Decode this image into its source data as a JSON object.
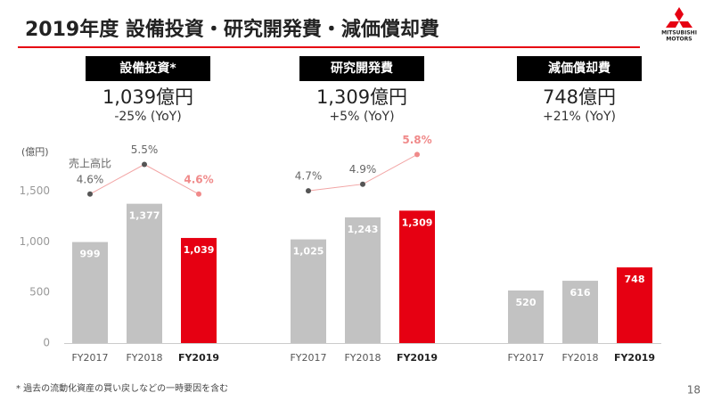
{
  "header": {
    "title": "2019年度 設備投資・研究開発費・減価償却費",
    "logo_text": [
      "MITSUBISHI",
      "MOTORS"
    ]
  },
  "chart_data": [
    {
      "type": "bar",
      "title": "設備投資*",
      "amount": "1,039億円",
      "yoy": "-25% (YoY)",
      "ylabel": "(億円)",
      "ylim": [
        0,
        1700
      ],
      "yticks": [
        0,
        500,
        {
          "value": 1000,
          "label": "1,000"
        },
        {
          "value": 1500,
          "label": "1,500"
        }
      ],
      "categories": [
        "FY2017",
        "FY2018",
        "FY2019"
      ],
      "values": [
        999,
        1377,
        1039
      ],
      "value_labels": [
        "999",
        "1,377",
        "1,039"
      ],
      "colors": [
        "#c2c2c2",
        "#c2c2c2",
        "#e60012"
      ],
      "y2lim": [
        4,
        6
      ],
      "series": [
        {
          "name": "売上高比",
          "axis": "y2",
          "values": [
            4.6,
            5.5,
            4.6
          ],
          "value_labels": [
            "4.6%",
            "5.5%",
            "4.6%"
          ],
          "colors": [
            "#555555",
            "#555555",
            "#f08a8a"
          ]
        }
      ]
    },
    {
      "type": "bar",
      "title": "研究開発費",
      "amount": "1,309億円",
      "yoy": "+5% (YoY)",
      "ylim": [
        0,
        1700
      ],
      "categories": [
        "FY2017",
        "FY2018",
        "FY2019"
      ],
      "values": [
        1025,
        1243,
        1309
      ],
      "value_labels": [
        "1,025",
        "1,243",
        "1,309"
      ],
      "colors": [
        "#c2c2c2",
        "#c2c2c2",
        "#e60012"
      ],
      "y2lim": [
        4,
        6
      ],
      "series": [
        {
          "axis": "y2",
          "values": [
            4.7,
            4.9,
            5.8
          ],
          "value_labels": [
            "4.7%",
            "4.9%",
            "5.8%"
          ],
          "colors": [
            "#555555",
            "#555555",
            "#f08a8a"
          ]
        }
      ]
    },
    {
      "type": "bar",
      "title": "減価償却費",
      "amount": "748億円",
      "yoy": "+21% (YoY)",
      "ylim": [
        0,
        1700
      ],
      "categories": [
        "FY2017",
        "FY2018",
        "FY2019"
      ],
      "values": [
        520,
        616,
        748
      ],
      "value_labels": [
        "520",
        "616",
        "748"
      ],
      "colors": [
        "#c2c2c2",
        "#c2c2c2",
        "#e60012"
      ]
    }
  ],
  "footnote": "* 過去の流動化資産の買い戻しなどの一時要因を含む",
  "page_number": "18"
}
